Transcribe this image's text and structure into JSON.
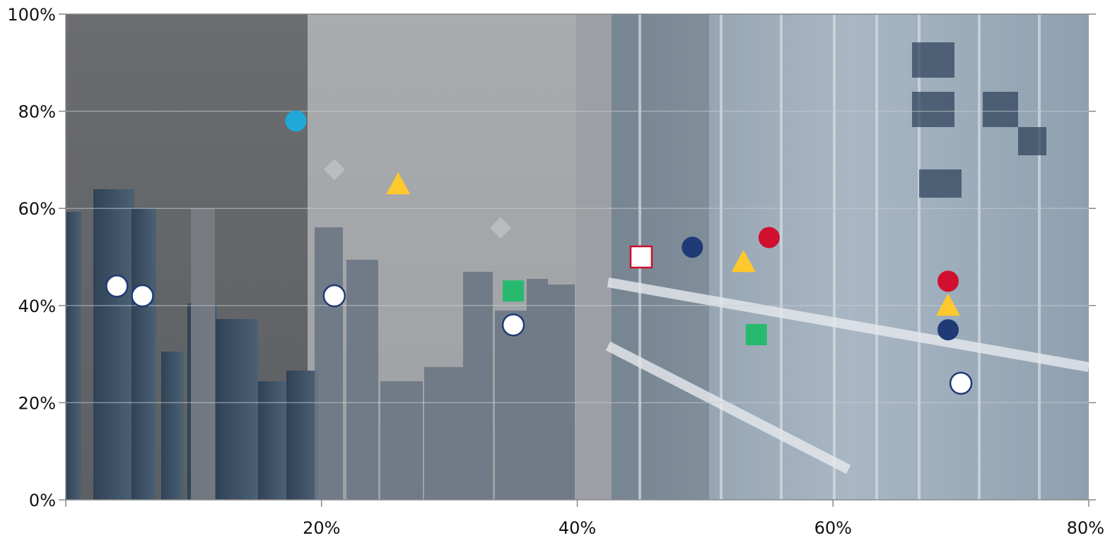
{
  "chart_data": {
    "type": "scatter",
    "title": "",
    "xlabel": "",
    "ylabel": "",
    "xlim": [
      0,
      80
    ],
    "ylim": [
      0,
      100
    ],
    "x_ticks": [
      {
        "value": 20,
        "label": "20%"
      },
      {
        "value": 40,
        "label": "40%"
      },
      {
        "value": 60,
        "label": "60%"
      },
      {
        "value": 80,
        "label": "80%"
      }
    ],
    "y_ticks": [
      {
        "value": 0,
        "label": "0%"
      },
      {
        "value": 20,
        "label": "20%"
      },
      {
        "value": 40,
        "label": "40%"
      },
      {
        "value": 60,
        "label": "60%"
      },
      {
        "value": 80,
        "label": "80%"
      },
      {
        "value": 100,
        "label": "100%"
      }
    ],
    "grid": true,
    "legend": "none",
    "series": [
      {
        "marker": "circle",
        "color": "#ffffff",
        "stroke": "#1f3a75",
        "points": [
          [
            4,
            44
          ],
          [
            6,
            42
          ],
          [
            21,
            42
          ],
          [
            35,
            36
          ],
          [
            70,
            24
          ]
        ]
      },
      {
        "marker": "circle",
        "color": "#1fa8d8",
        "stroke": "none",
        "points": [
          [
            18,
            78
          ]
        ]
      },
      {
        "marker": "diamond",
        "color": "#c9ccd0",
        "stroke": "none",
        "opacity": 0.6,
        "points": [
          [
            21,
            68
          ],
          [
            34,
            56
          ]
        ]
      },
      {
        "marker": "triangle",
        "color": "#ffc82c",
        "stroke": "none",
        "points": [
          [
            26,
            65
          ],
          [
            53,
            49
          ],
          [
            69,
            40
          ]
        ]
      },
      {
        "marker": "square",
        "color": "#27ba6e",
        "stroke": "none",
        "points": [
          [
            35,
            43
          ],
          [
            54,
            34
          ]
        ]
      },
      {
        "marker": "square",
        "color": "#ffffff",
        "stroke": "#c8102e",
        "points": [
          [
            45,
            50
          ]
        ]
      },
      {
        "marker": "circle",
        "color": "#1f3a75",
        "stroke": "none",
        "points": [
          [
            49,
            52
          ],
          [
            69,
            35
          ]
        ]
      },
      {
        "marker": "circle",
        "color": "#d0102e",
        "stroke": "none",
        "points": [
          [
            55,
            54
          ],
          [
            69,
            45
          ]
        ]
      }
    ],
    "background": {
      "image": "city skyline and glass building photo",
      "colors": {
        "sky_dark": "#6b6d70",
        "sky_light": "#a8aaac",
        "building_blue": "#3e5872",
        "glass": "#9fb3c5"
      }
    }
  }
}
